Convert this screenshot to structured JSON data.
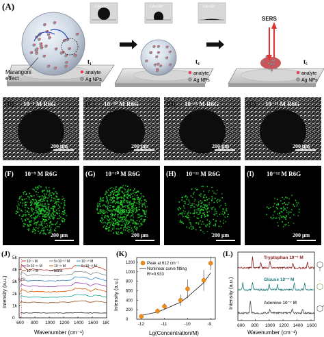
{
  "panel_A": {
    "label": "(A)",
    "contact_angles": [
      "CA=158°",
      "CA=126°",
      "CA<10°"
    ],
    "times": [
      "t₁",
      "t₄",
      "t₅"
    ],
    "legend": {
      "analyte": "analyte",
      "ag": "Ag NPs"
    },
    "marangoni": "Marangoni\neffect",
    "sers": "SERS"
  },
  "micro_row": [
    {
      "label": "(B)",
      "conc": "10⁻⁹ M R6G",
      "scale": "200 μm"
    },
    {
      "label": "(C)",
      "conc": "10⁻¹⁰ M R6G",
      "scale": "200 μm"
    },
    {
      "label": "(D)",
      "conc": "10⁻¹¹ M R6G",
      "scale": "200 μm"
    },
    {
      "label": "(E)",
      "conc": "10⁻¹² M R6G",
      "scale": "200 μm"
    }
  ],
  "map_row": [
    {
      "label": "(F)",
      "conc": "10⁻⁹ M R6G",
      "scale": "200 μm"
    },
    {
      "label": "(G)",
      "conc": "10⁻¹⁰ M R6G",
      "scale": "200 μm"
    },
    {
      "label": "(H)",
      "conc": "10⁻¹¹ M R6G",
      "scale": "200 μm"
    },
    {
      "label": "(I)",
      "conc": "10⁻¹² M R6G",
      "scale": "200 μm"
    }
  ],
  "panel_J": {
    "label": "(J)",
    "ylabel": "Intensity (a.u.)",
    "xlabel": "Wavenumber (cm⁻¹)",
    "peak": "612",
    "legend": [
      "10⁻⁹ M",
      "5×10⁻¹⁰ M",
      "10⁻¹⁰ M",
      "5×10⁻¹¹ M",
      "10⁻¹¹ M",
      "5×10⁻¹² M",
      "10⁻¹² M",
      "Blank"
    ],
    "colors": [
      "#c0392b",
      "#7f8c8d",
      "#2e86c1",
      "#8e44ad",
      "#d35400",
      "#16a085",
      "#8b4513",
      "#222222"
    ],
    "xticks": [
      "600",
      "800",
      "1000",
      "1200",
      "1400",
      "1600",
      "1800"
    ],
    "yticks": [
      "0",
      "1k",
      "2k",
      "3k",
      "4k",
      "5k"
    ]
  },
  "panel_K": {
    "label": "(K)",
    "ylabel": "Intensity (a.u.)",
    "xlabel": "Lg(Concentration/M)",
    "legend_points": "Peak at 612 cm⁻¹",
    "legend_fit": "Nonlinear curve fitting",
    "r2": "R²=0.933",
    "xticks": [
      "-12",
      "-11",
      "-10",
      "-9"
    ],
    "yticks": [
      "0",
      "200",
      "400",
      "600",
      "800",
      "1000",
      "1200"
    ]
  },
  "panel_L": {
    "label": "(L)",
    "ylabel": "Intensity (a.u.)",
    "xlabel": "Wavenumber (cm⁻¹)",
    "spectra": [
      {
        "name": "Tryptophan 10⁻⁷ M",
        "color": "#8b1a1a"
      },
      {
        "name": "Glouse 10⁻⁷ M",
        "color": "#1a7a7a"
      },
      {
        "name": "Adenine 10⁻⁷ M",
        "color": "#444444"
      }
    ],
    "xticks": [
      "600",
      "800",
      "1000",
      "1200",
      "1400",
      "1600"
    ]
  },
  "chart_data": [
    {
      "type": "line",
      "title": "",
      "xlabel": "Wavenumber (cm⁻¹)",
      "ylabel": "Intensity (a.u.)",
      "xlim": [
        580,
        1800
      ],
      "ylim": [
        0,
        5000
      ],
      "x": [
        600,
        612,
        700,
        770,
        920,
        1090,
        1180,
        1310,
        1360,
        1510,
        1575,
        1650,
        1800
      ],
      "series": [
        {
          "name": "10⁻⁹ M",
          "values": [
            3950,
            4400,
            3950,
            4050,
            3950,
            3950,
            4050,
            4100,
            4350,
            4300,
            4100,
            4300,
            3950
          ]
        },
        {
          "name": "5×10⁻¹⁰ M",
          "values": [
            3500,
            3800,
            3500,
            3600,
            3500,
            3500,
            3550,
            3600,
            3850,
            3800,
            3600,
            3800,
            3500
          ]
        },
        {
          "name": "10⁻¹⁰ M",
          "values": [
            3050,
            3300,
            3050,
            3100,
            3050,
            3050,
            3100,
            3150,
            3400,
            3350,
            3150,
            3350,
            3050
          ]
        },
        {
          "name": "5×10⁻¹¹ M",
          "values": [
            2600,
            2800,
            2600,
            2650,
            2600,
            2600,
            2650,
            2700,
            2900,
            2850,
            2650,
            2850,
            2600
          ]
        },
        {
          "name": "10⁻¹¹ M",
          "values": [
            2150,
            2350,
            2150,
            2200,
            2150,
            2150,
            2200,
            2250,
            2450,
            2400,
            2200,
            2400,
            2150
          ]
        },
        {
          "name": "5×10⁻¹² M",
          "values": [
            1700,
            1850,
            1700,
            1750,
            1700,
            1700,
            1750,
            1800,
            1950,
            1900,
            1750,
            1900,
            1700
          ]
        },
        {
          "name": "10⁻¹² M",
          "values": [
            1250,
            1350,
            1250,
            1300,
            1250,
            1250,
            1300,
            1300,
            1400,
            1380,
            1300,
            1380,
            1250
          ]
        },
        {
          "name": "Blank",
          "values": [
            400,
            420,
            400,
            410,
            400,
            400,
            405,
            410,
            420,
            415,
            405,
            410,
            400
          ]
        }
      ]
    },
    {
      "type": "scatter",
      "title": "",
      "xlabel": "Lg(Concentration/M)",
      "ylabel": "Intensity (a.u.)",
      "xlim": [
        -12.2,
        -8.8
      ],
      "ylim": [
        0,
        1300
      ],
      "x": [
        -12,
        -11.3,
        -11,
        -10.3,
        -10,
        -9.3,
        -9
      ],
      "series": [
        {
          "name": "Peak at 612 cm⁻¹",
          "values": [
            60,
            170,
            270,
            400,
            640,
            820,
            1180
          ],
          "errors": [
            40,
            50,
            60,
            120,
            200,
            220,
            140
          ]
        },
        {
          "name": "Nonlinear curve fitting",
          "values": [
            80,
            150,
            210,
            360,
            470,
            770,
            980
          ]
        }
      ]
    },
    {
      "type": "line",
      "title": "",
      "xlabel": "Wavenumber (cm⁻¹)",
      "ylabel": "Intensity (a.u.)",
      "xlim": [
        550,
        1650
      ],
      "series": [
        {
          "name": "Tryptophan 10⁻⁷ M"
        },
        {
          "name": "Glouse 10⁻⁷ M"
        },
        {
          "name": "Adenine 10⁻⁷ M"
        }
      ]
    }
  ]
}
